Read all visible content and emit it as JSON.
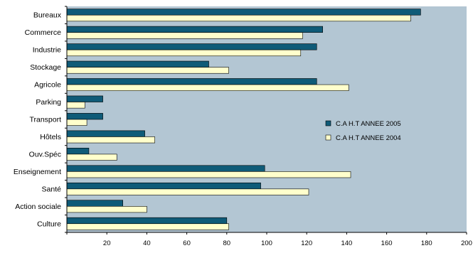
{
  "chart_data": {
    "type": "bar",
    "orientation": "horizontal",
    "title": "",
    "xlabel": "",
    "ylabel": "",
    "categories": [
      "Bureaux",
      "Commerce",
      "Industrie",
      "Stockage",
      "Agricole",
      "Parking",
      "Transport",
      "Hôtels",
      "Ouv.Spéc",
      "Enseignement",
      "Santé",
      "Action sociale",
      "Culture"
    ],
    "series": [
      {
        "name": "C.A H.T ANNEE 2005",
        "color": "#0f5b78",
        "values": [
          177,
          128,
          125,
          71,
          125,
          18,
          18,
          39,
          11,
          99,
          97,
          28,
          80
        ]
      },
      {
        "name": "C.A H.T ANNEE 2004",
        "color": "#ffffcc",
        "values": [
          172,
          118,
          117,
          81,
          141,
          9,
          10,
          44,
          25,
          142,
          121,
          40,
          81
        ]
      }
    ],
    "xlim": [
      0,
      200
    ],
    "xticks": [
      20,
      40,
      60,
      80,
      100,
      120,
      140,
      160,
      180,
      200
    ],
    "grid": false,
    "legend_position": "right",
    "plot_background": "#b3c6d3"
  }
}
